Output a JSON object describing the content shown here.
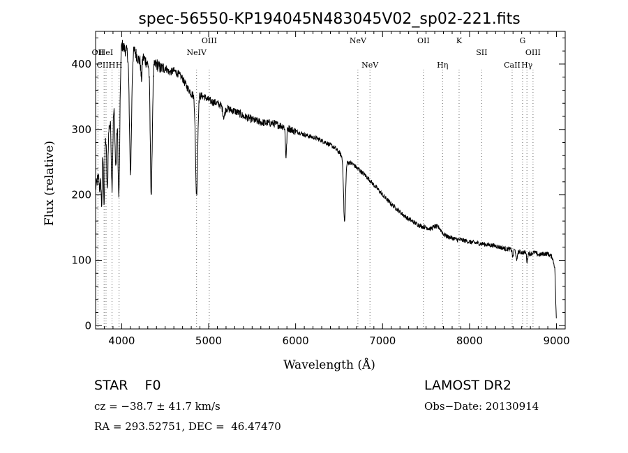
{
  "chart_data": {
    "type": "line",
    "title": "spec-56550-KP194045N483045V02_sp02-221.fits",
    "xlabel": "Wavelength (Å)",
    "ylabel": "Flux (relative)",
    "xlim": [
      3700,
      9100
    ],
    "ylim": [
      -5,
      450
    ],
    "x_ticks": [
      4000,
      5000,
      6000,
      7000,
      8000,
      9000
    ],
    "y_ticks": [
      0,
      100,
      200,
      300,
      400
    ],
    "grid": false,
    "continuum": [
      [
        3700,
        210
      ],
      [
        3750,
        240
      ],
      [
        3800,
        280
      ],
      [
        3850,
        300
      ],
      [
        3900,
        330
      ],
      [
        3950,
        350
      ],
      [
        4000,
        430
      ],
      [
        4050,
        420
      ],
      [
        4100,
        415
      ],
      [
        4150,
        420
      ],
      [
        4200,
        405
      ],
      [
        4250,
        410
      ],
      [
        4300,
        400
      ],
      [
        4350,
        395
      ],
      [
        4400,
        400
      ],
      [
        4450,
        393
      ],
      [
        4500,
        395
      ],
      [
        4550,
        387
      ],
      [
        4600,
        390
      ],
      [
        4650,
        385
      ],
      [
        4700,
        378
      ],
      [
        4750,
        365
      ],
      [
        4800,
        355
      ],
      [
        4850,
        350
      ],
      [
        4900,
        352
      ],
      [
        4950,
        350
      ],
      [
        5000,
        345
      ],
      [
        5050,
        342
      ],
      [
        5100,
        340
      ],
      [
        5150,
        336
      ],
      [
        5200,
        333
      ],
      [
        5250,
        330
      ],
      [
        5300,
        328
      ],
      [
        5350,
        325
      ],
      [
        5400,
        320
      ],
      [
        5450,
        318
      ],
      [
        5500,
        315
      ],
      [
        5550,
        313
      ],
      [
        5600,
        311
      ],
      [
        5650,
        310
      ],
      [
        5700,
        310
      ],
      [
        5750,
        309
      ],
      [
        5800,
        307
      ],
      [
        5850,
        305
      ],
      [
        5900,
        303
      ],
      [
        5950,
        300
      ],
      [
        6000,
        297
      ],
      [
        6050,
        295
      ],
      [
        6100,
        292
      ],
      [
        6150,
        290
      ],
      [
        6200,
        288
      ],
      [
        6250,
        286
      ],
      [
        6300,
        283
      ],
      [
        6350,
        280
      ],
      [
        6400,
        276
      ],
      [
        6450,
        272
      ],
      [
        6500,
        265
      ],
      [
        6550,
        255
      ],
      [
        6600,
        250
      ],
      [
        6650,
        248
      ],
      [
        6700,
        242
      ],
      [
        6750,
        236
      ],
      [
        6800,
        230
      ],
      [
        6850,
        223
      ],
      [
        6900,
        215
      ],
      [
        6950,
        208
      ],
      [
        7000,
        200
      ],
      [
        7050,
        193
      ],
      [
        7100,
        186
      ],
      [
        7150,
        180
      ],
      [
        7200,
        174
      ],
      [
        7250,
        168
      ],
      [
        7300,
        163
      ],
      [
        7350,
        159
      ],
      [
        7400,
        155
      ],
      [
        7450,
        152
      ],
      [
        7500,
        150
      ],
      [
        7550,
        148
      ],
      [
        7600,
        152
      ],
      [
        7650,
        150
      ],
      [
        7700,
        140
      ],
      [
        7750,
        136
      ],
      [
        7800,
        134
      ],
      [
        7850,
        132
      ],
      [
        7900,
        131
      ],
      [
        7950,
        130
      ],
      [
        8000,
        128
      ],
      [
        8050,
        127
      ],
      [
        8100,
        126
      ],
      [
        8150,
        125
      ],
      [
        8200,
        124
      ],
      [
        8250,
        123
      ],
      [
        8300,
        122
      ],
      [
        8350,
        120
      ],
      [
        8400,
        118
      ],
      [
        8450,
        117
      ],
      [
        8500,
        116
      ],
      [
        8550,
        113
      ],
      [
        8600,
        112
      ],
      [
        8650,
        112
      ],
      [
        8700,
        110
      ],
      [
        8750,
        112
      ],
      [
        8800,
        108
      ],
      [
        8850,
        110
      ],
      [
        8900,
        110
      ],
      [
        8950,
        105
      ],
      [
        8980,
        90
      ],
      [
        9000,
        0
      ]
    ],
    "absorption_features": [
      {
        "x": 3750,
        "depth": 30,
        "width": 8
      },
      {
        "x": 3770,
        "depth": 70,
        "width": 6
      },
      {
        "x": 3798,
        "depth": 90,
        "width": 6
      },
      {
        "x": 3835,
        "depth": 90,
        "width": 7
      },
      {
        "x": 3889,
        "depth": 110,
        "width": 8
      },
      {
        "x": 3933,
        "depth": 100,
        "width": 9
      },
      {
        "x": 3968,
        "depth": 180,
        "width": 10
      },
      {
        "x": 4101,
        "depth": 180,
        "width": 12
      },
      {
        "x": 4227,
        "depth": 30,
        "width": 7
      },
      {
        "x": 4340,
        "depth": 195,
        "width": 11
      },
      {
        "x": 4861,
        "depth": 150,
        "width": 12
      },
      {
        "x": 5175,
        "depth": 15,
        "width": 12
      },
      {
        "x": 5890,
        "depth": 45,
        "width": 7
      },
      {
        "x": 6563,
        "depth": 95,
        "width": 11
      },
      {
        "x": 8498,
        "depth": 12,
        "width": 6
      },
      {
        "x": 8542,
        "depth": 16,
        "width": 6
      },
      {
        "x": 8662,
        "depth": 14,
        "width": 6
      }
    ],
    "line_markers": [
      {
        "x": 3727,
        "label": "OII",
        "row": "upper"
      },
      {
        "x": 3798,
        "label": "CIII",
        "row": "lower"
      },
      {
        "x": 3820,
        "label": "HeI",
        "row": "upper"
      },
      {
        "x": 3889,
        "label": "H",
        "row": "lower"
      },
      {
        "x": 3970,
        "label": "H",
        "row": "lower"
      },
      {
        "x": 4861,
        "label": "NeIV",
        "row": "middle"
      },
      {
        "x": 5007,
        "label": "OIII",
        "row": "top"
      },
      {
        "x": 6716,
        "label": "NeV",
        "row": "top"
      },
      {
        "x": 6855,
        "label": "NeV",
        "row": "lower"
      },
      {
        "x": 7470,
        "label": "OII",
        "row": "top"
      },
      {
        "x": 7690,
        "label": "Hη",
        "row": "lower"
      },
      {
        "x": 7880,
        "label": "K",
        "row": "top"
      },
      {
        "x": 8140,
        "label": "SII",
        "row": "upper"
      },
      {
        "x": 8490,
        "label": "CaII",
        "row": "lower"
      },
      {
        "x": 8610,
        "label": "G",
        "row": "top"
      },
      {
        "x": 8660,
        "label": "Hγ",
        "row": "lower"
      },
      {
        "x": 8730,
        "label": "OIII",
        "row": "upper"
      }
    ]
  },
  "info": {
    "object": "STAR    F0",
    "survey": "LAMOST DR2",
    "redshift": "cz = −38.7 ± 41.7 km/s",
    "obs_date": "Obs−Date: 20130914",
    "coords": "RA = 293.52751, DEC =  46.47470"
  }
}
